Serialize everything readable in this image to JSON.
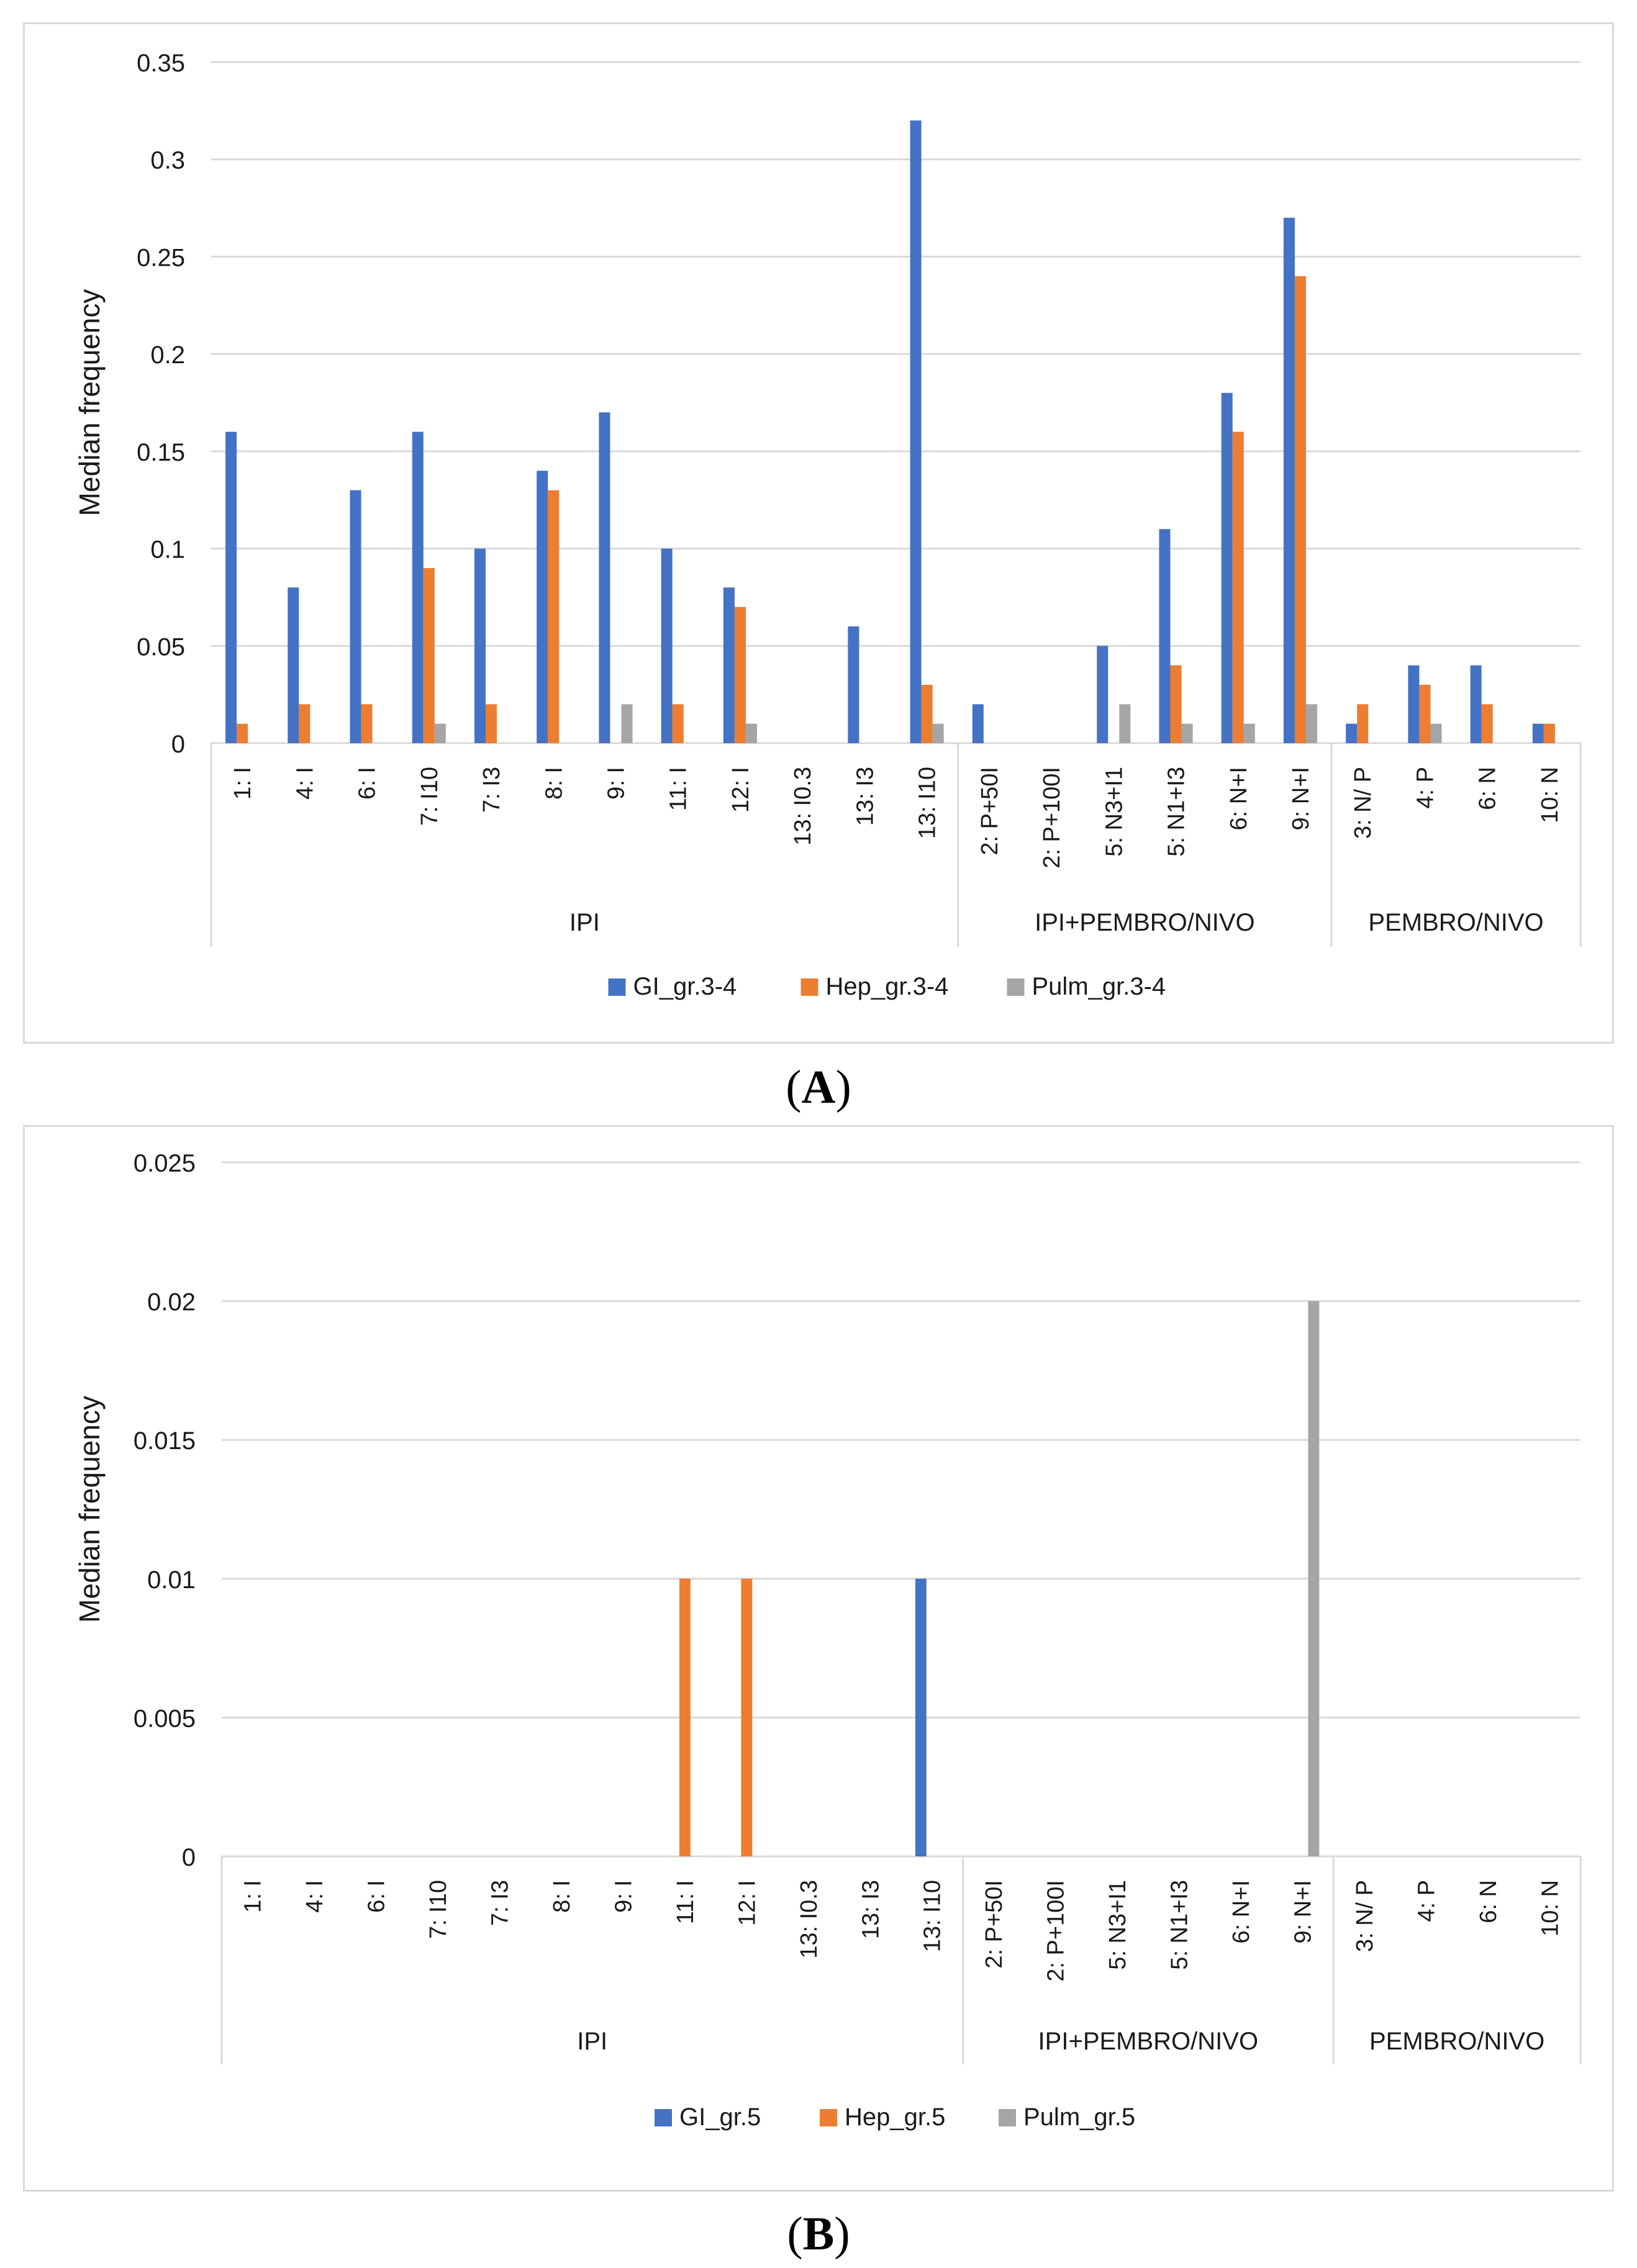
{
  "colors": {
    "gi": "#4472c4",
    "hep": "#ed7d31",
    "pulm": "#a5a5a5",
    "grid": "#d9d9d9",
    "text": "#1a1a1a"
  },
  "categories": [
    "1: I",
    "4: I",
    "6: I",
    "7: I10",
    "7: I3",
    "8: I",
    "9: I",
    "11: I",
    "12: I",
    "13: I0.3",
    "13: I3",
    "13: I10",
    "2: P+50I",
    "2: P+100I",
    "5: N3+I1",
    "5: N1+I3",
    "6: N+I",
    "9: N+I",
    "3: N/ P",
    "4: P",
    "6: N",
    "10: N"
  ],
  "groups": [
    {
      "label": "IPI",
      "start": 0,
      "end": 11
    },
    {
      "label": "IPI+PEMBRO/NIVO",
      "start": 12,
      "end": 17
    },
    {
      "label": "PEMBRO/NIVO",
      "start": 18,
      "end": 21
    }
  ],
  "chart_data": [
    {
      "type": "bar",
      "ylabel": "Median frequency",
      "ylim": [
        0,
        0.35
      ],
      "yticks": [
        "0",
        "0.05",
        "0.1",
        "0.15",
        "0.2",
        "0.25",
        "0.3",
        "0.35"
      ],
      "grid": true,
      "legend_position": "bottom",
      "series": [
        {
          "name": "GI_gr.3-4",
          "values": [
            0.16,
            0.08,
            0.13,
            0.16,
            0.1,
            0.14,
            0.17,
            0.1,
            0.08,
            0,
            0.06,
            0.32,
            0.02,
            0,
            0.05,
            0.11,
            0.18,
            0.27,
            0.01,
            0.04,
            0.04,
            0.01
          ]
        },
        {
          "name": "Hep_gr.3-4",
          "values": [
            0.01,
            0.02,
            0.02,
            0.09,
            0.02,
            0.13,
            0,
            0.02,
            0.07,
            0,
            0,
            0.03,
            0,
            0,
            0,
            0.04,
            0.16,
            0.24,
            0.02,
            0.03,
            0.02,
            0.01
          ]
        },
        {
          "name": "Pulm_gr.3-4",
          "values": [
            0,
            0,
            0,
            0.01,
            0,
            0,
            0.02,
            0,
            0.01,
            0,
            0,
            0.01,
            0,
            0,
            0.02,
            0.01,
            0.01,
            0.02,
            0,
            0.01,
            0,
            0
          ]
        }
      ],
      "caption": "(A)"
    },
    {
      "type": "bar",
      "ylabel": "Median frequency",
      "ylim": [
        0,
        0.025
      ],
      "yticks": [
        "0",
        "0.005",
        "0.01",
        "0.015",
        "0.02",
        "0.025"
      ],
      "grid": true,
      "legend_position": "bottom",
      "series": [
        {
          "name": "GI_gr.5",
          "values": [
            0,
            0,
            0,
            0,
            0,
            0,
            0,
            0,
            0,
            0,
            0,
            0.01,
            0,
            0,
            0,
            0,
            0,
            0,
            0,
            0,
            0,
            0
          ]
        },
        {
          "name": "Hep_gr.5",
          "values": [
            0,
            0,
            0,
            0,
            0,
            0,
            0,
            0.01,
            0.01,
            0,
            0,
            0,
            0,
            0,
            0,
            0,
            0,
            0,
            0,
            0,
            0,
            0
          ]
        },
        {
          "name": "Pulm_gr.5",
          "values": [
            0,
            0,
            0,
            0,
            0,
            0,
            0,
            0,
            0,
            0,
            0,
            0,
            0,
            0,
            0,
            0,
            0,
            0.02,
            0,
            0,
            0,
            0
          ]
        }
      ],
      "caption": "(B)"
    }
  ]
}
